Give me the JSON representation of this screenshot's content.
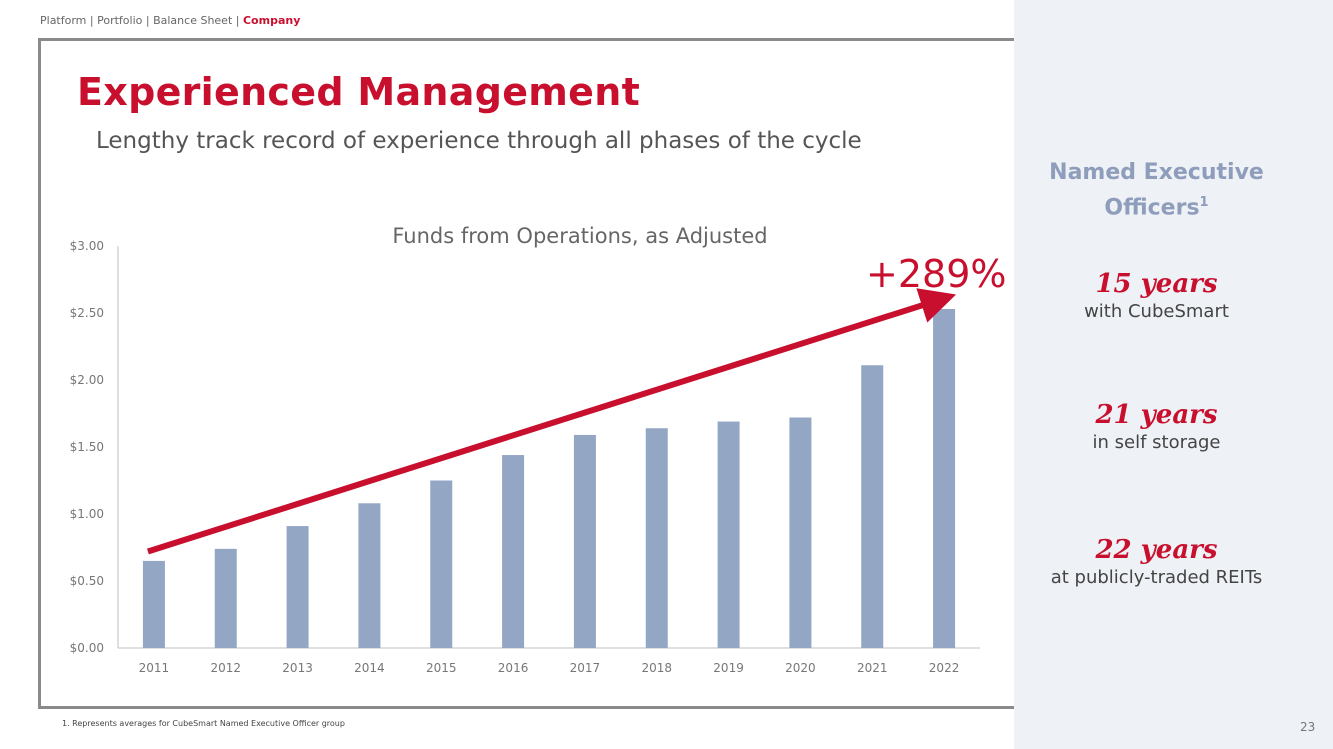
{
  "breadcrumb": {
    "items": [
      "Platform",
      "Portfolio",
      "Balance Sheet"
    ],
    "separator": "|",
    "active": "Company"
  },
  "header": {
    "title": "Experienced Management",
    "subtitle": "Lengthy track record of experience through all phases of the cycle"
  },
  "chart_data": {
    "type": "bar",
    "title": "Funds from Operations, as Adjusted",
    "categories": [
      "2011",
      "2012",
      "2013",
      "2014",
      "2015",
      "2016",
      "2017",
      "2018",
      "2019",
      "2020",
      "2021",
      "2022"
    ],
    "values": [
      0.65,
      0.74,
      0.91,
      1.08,
      1.25,
      1.44,
      1.59,
      1.64,
      1.69,
      1.72,
      2.11,
      2.53
    ],
    "ylim": [
      0,
      3.0
    ],
    "yticks": [
      "$0.00",
      "$0.50",
      "$1.00",
      "$1.50",
      "$2.00",
      "$2.50",
      "$3.00"
    ],
    "ytick_values": [
      0,
      0.5,
      1.0,
      1.5,
      2.0,
      2.5,
      3.0
    ],
    "xlabel": "",
    "ylabel": "",
    "grid": false,
    "bar_color": "#93a6c4",
    "annotation": {
      "text": "+289%",
      "color": "#c8102e",
      "arrow_from": {
        "category": "2011",
        "value": 0.72
      },
      "arrow_to": {
        "category": "2022",
        "value": 2.6
      }
    }
  },
  "sidebar": {
    "heading": "Named Executive Officers",
    "heading_sup": "1",
    "stats": [
      {
        "value": "15 years",
        "label": "with CubeSmart"
      },
      {
        "value": "21 years",
        "label": "in self storage"
      },
      {
        "value": "22 years",
        "label": "at publicly-traded REITs"
      }
    ]
  },
  "footnote": "1.   Represents averages for CubeSmart Named Executive Officer group",
  "page_number": "23",
  "colors": {
    "accent": "#c8102e",
    "bar": "#93a6c4",
    "sidebar_bg": "#eef1f6",
    "sidebar_heading": "#8e9dbb"
  }
}
